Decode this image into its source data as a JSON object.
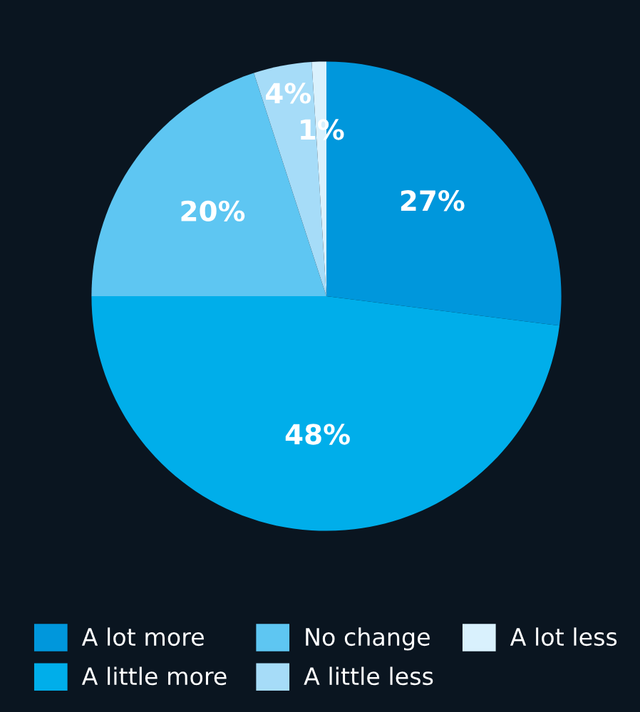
{
  "chart_data": {
    "type": "pie",
    "categories": [
      "A lot more",
      "A little more",
      "No change",
      "A little less",
      "A lot less"
    ],
    "values": [
      27,
      48,
      20,
      4,
      1
    ],
    "colors": [
      "#0097dc",
      "#00aeea",
      "#5ec6f2",
      "#a6dcf8",
      "#d9f1fd"
    ],
    "value_labels": [
      "27%",
      "48%",
      "20%",
      "4%",
      "1%"
    ],
    "legend": "bottom"
  }
}
